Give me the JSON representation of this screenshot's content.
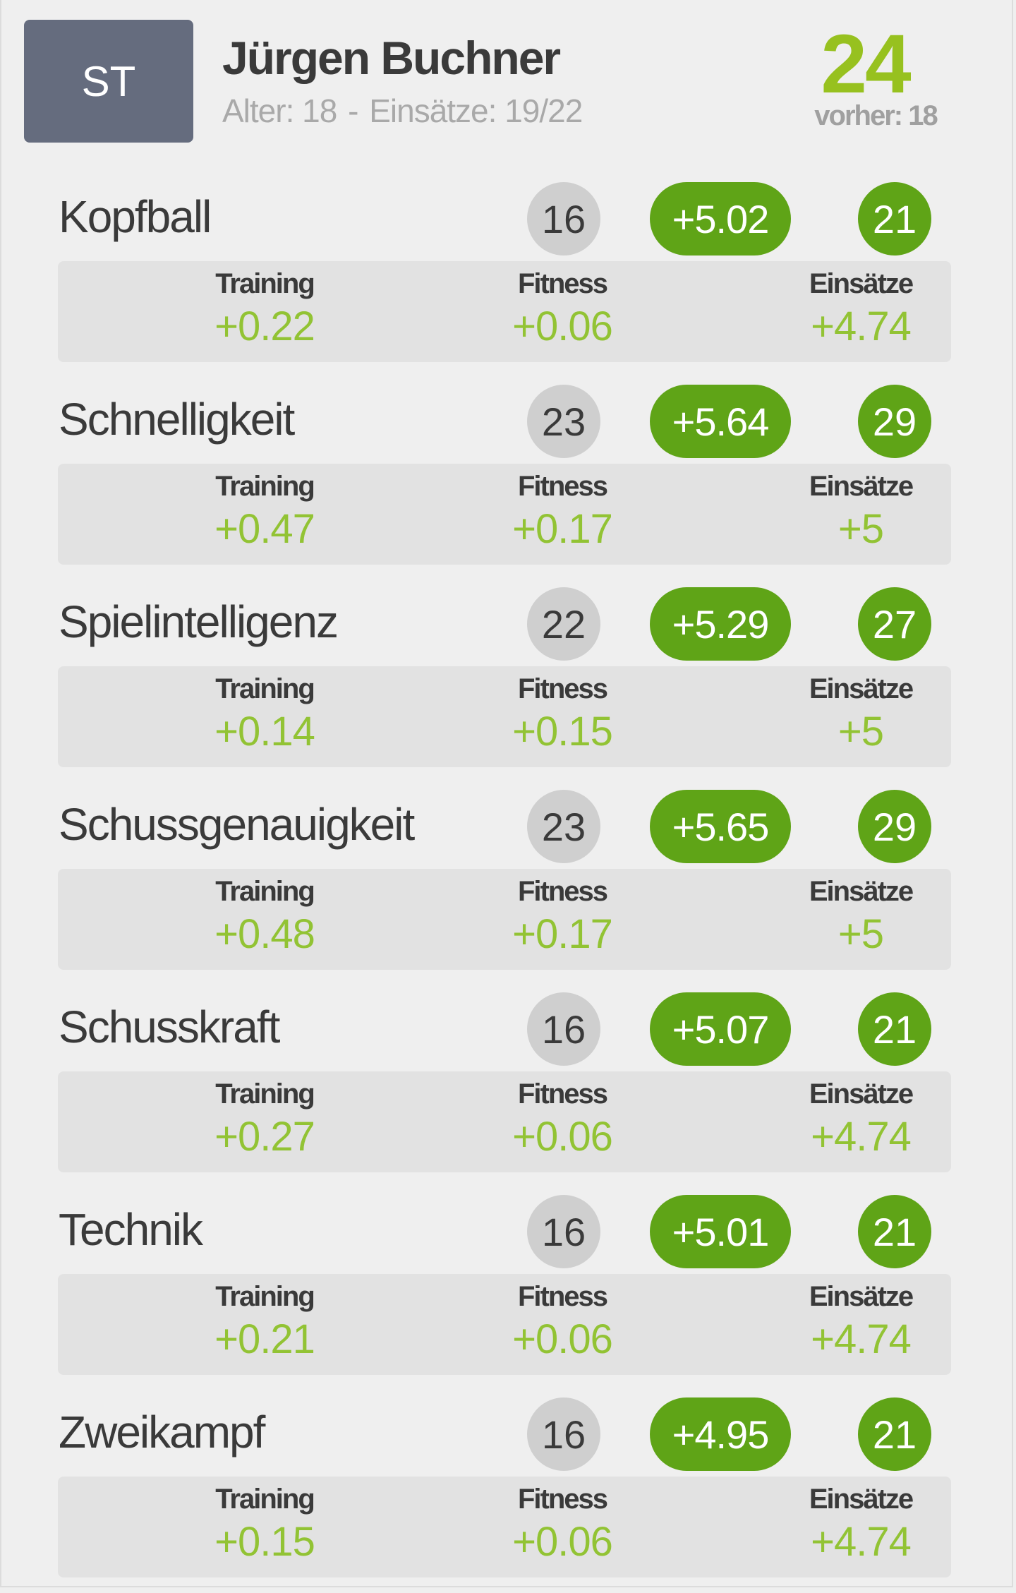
{
  "player": {
    "position": "ST",
    "name": "Jürgen Buchner",
    "age_label": "Alter: 18",
    "separator": "-",
    "games_label": "Einsätze: 19/22",
    "overall": "24",
    "previous_label": "vorher: 18"
  },
  "labels": {
    "training": "Training",
    "fitness": "Fitness",
    "games": "Einsätze"
  },
  "colors": {
    "badge_gray": "#656c7e",
    "accent_green": "#5fa417",
    "value_green": "#92c334",
    "overall_green": "#97c11f"
  },
  "skills": [
    {
      "name": "Kopfball",
      "base": "16",
      "delta": "+5.02",
      "new": "21",
      "training": "+0.22",
      "fitness": "+0.06",
      "games": "+4.74"
    },
    {
      "name": "Schnelligkeit",
      "base": "23",
      "delta": "+5.64",
      "new": "29",
      "training": "+0.47",
      "fitness": "+0.17",
      "games": "+5"
    },
    {
      "name": "Spielintelligenz",
      "base": "22",
      "delta": "+5.29",
      "new": "27",
      "training": "+0.14",
      "fitness": "+0.15",
      "games": "+5"
    },
    {
      "name": "Schussgenauigkeit",
      "base": "23",
      "delta": "+5.65",
      "new": "29",
      "training": "+0.48",
      "fitness": "+0.17",
      "games": "+5"
    },
    {
      "name": "Schusskraft",
      "base": "16",
      "delta": "+5.07",
      "new": "21",
      "training": "+0.27",
      "fitness": "+0.06",
      "games": "+4.74"
    },
    {
      "name": "Technik",
      "base": "16",
      "delta": "+5.01",
      "new": "21",
      "training": "+0.21",
      "fitness": "+0.06",
      "games": "+4.74"
    },
    {
      "name": "Zweikampf",
      "base": "16",
      "delta": "+4.95",
      "new": "21",
      "training": "+0.15",
      "fitness": "+0.06",
      "games": "+4.74"
    }
  ]
}
